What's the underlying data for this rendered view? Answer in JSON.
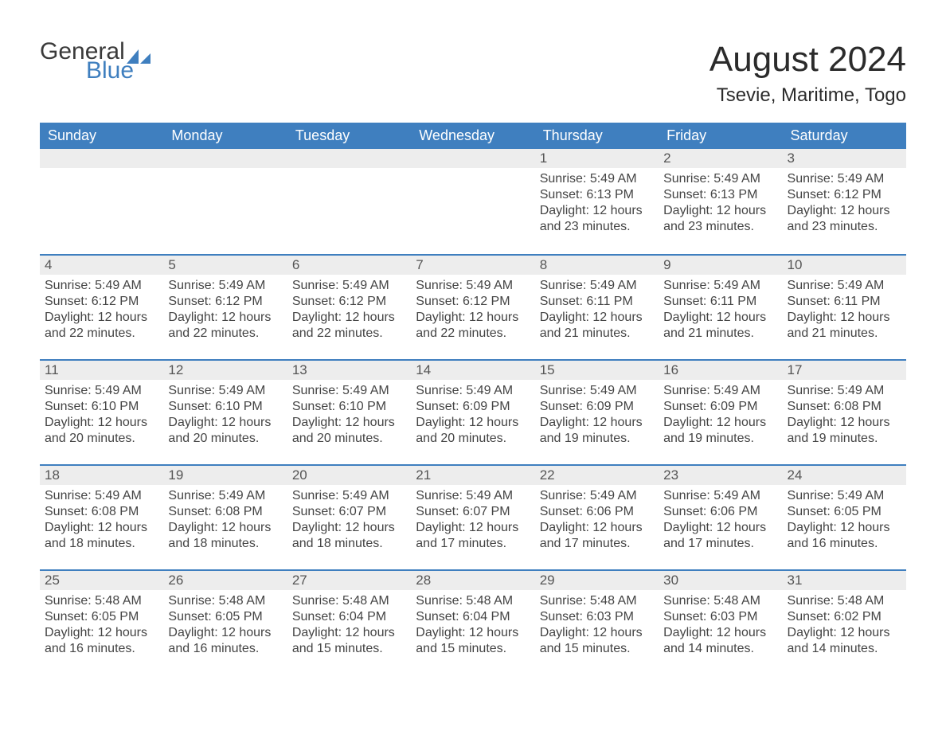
{
  "logo": {
    "text1": "General",
    "text2": "Blue",
    "sail_color": "#3f7fbf"
  },
  "title": "August 2024",
  "location": "Tsevie, Maritime, Togo",
  "colors": {
    "header_bg": "#3f7fbf",
    "header_text": "#ffffff",
    "daynum_bg": "#ededed",
    "rule": "#3f7fbf",
    "body_text": "#444444"
  },
  "weekdays": [
    "Sunday",
    "Monday",
    "Tuesday",
    "Wednesday",
    "Thursday",
    "Friday",
    "Saturday"
  ],
  "labels": {
    "sunrise": "Sunrise:",
    "sunset": "Sunset:",
    "daylight": "Daylight:"
  },
  "weeks": [
    [
      null,
      null,
      null,
      null,
      {
        "n": "1",
        "sunrise": "5:49 AM",
        "sunset": "6:13 PM",
        "daylight": "12 hours and 23 minutes."
      },
      {
        "n": "2",
        "sunrise": "5:49 AM",
        "sunset": "6:13 PM",
        "daylight": "12 hours and 23 minutes."
      },
      {
        "n": "3",
        "sunrise": "5:49 AM",
        "sunset": "6:12 PM",
        "daylight": "12 hours and 23 minutes."
      }
    ],
    [
      {
        "n": "4",
        "sunrise": "5:49 AM",
        "sunset": "6:12 PM",
        "daylight": "12 hours and 22 minutes."
      },
      {
        "n": "5",
        "sunrise": "5:49 AM",
        "sunset": "6:12 PM",
        "daylight": "12 hours and 22 minutes."
      },
      {
        "n": "6",
        "sunrise": "5:49 AM",
        "sunset": "6:12 PM",
        "daylight": "12 hours and 22 minutes."
      },
      {
        "n": "7",
        "sunrise": "5:49 AM",
        "sunset": "6:12 PM",
        "daylight": "12 hours and 22 minutes."
      },
      {
        "n": "8",
        "sunrise": "5:49 AM",
        "sunset": "6:11 PM",
        "daylight": "12 hours and 21 minutes."
      },
      {
        "n": "9",
        "sunrise": "5:49 AM",
        "sunset": "6:11 PM",
        "daylight": "12 hours and 21 minutes."
      },
      {
        "n": "10",
        "sunrise": "5:49 AM",
        "sunset": "6:11 PM",
        "daylight": "12 hours and 21 minutes."
      }
    ],
    [
      {
        "n": "11",
        "sunrise": "5:49 AM",
        "sunset": "6:10 PM",
        "daylight": "12 hours and 20 minutes."
      },
      {
        "n": "12",
        "sunrise": "5:49 AM",
        "sunset": "6:10 PM",
        "daylight": "12 hours and 20 minutes."
      },
      {
        "n": "13",
        "sunrise": "5:49 AM",
        "sunset": "6:10 PM",
        "daylight": "12 hours and 20 minutes."
      },
      {
        "n": "14",
        "sunrise": "5:49 AM",
        "sunset": "6:09 PM",
        "daylight": "12 hours and 20 minutes."
      },
      {
        "n": "15",
        "sunrise": "5:49 AM",
        "sunset": "6:09 PM",
        "daylight": "12 hours and 19 minutes."
      },
      {
        "n": "16",
        "sunrise": "5:49 AM",
        "sunset": "6:09 PM",
        "daylight": "12 hours and 19 minutes."
      },
      {
        "n": "17",
        "sunrise": "5:49 AM",
        "sunset": "6:08 PM",
        "daylight": "12 hours and 19 minutes."
      }
    ],
    [
      {
        "n": "18",
        "sunrise": "5:49 AM",
        "sunset": "6:08 PM",
        "daylight": "12 hours and 18 minutes."
      },
      {
        "n": "19",
        "sunrise": "5:49 AM",
        "sunset": "6:08 PM",
        "daylight": "12 hours and 18 minutes."
      },
      {
        "n": "20",
        "sunrise": "5:49 AM",
        "sunset": "6:07 PM",
        "daylight": "12 hours and 18 minutes."
      },
      {
        "n": "21",
        "sunrise": "5:49 AM",
        "sunset": "6:07 PM",
        "daylight": "12 hours and 17 minutes."
      },
      {
        "n": "22",
        "sunrise": "5:49 AM",
        "sunset": "6:06 PM",
        "daylight": "12 hours and 17 minutes."
      },
      {
        "n": "23",
        "sunrise": "5:49 AM",
        "sunset": "6:06 PM",
        "daylight": "12 hours and 17 minutes."
      },
      {
        "n": "24",
        "sunrise": "5:49 AM",
        "sunset": "6:05 PM",
        "daylight": "12 hours and 16 minutes."
      }
    ],
    [
      {
        "n": "25",
        "sunrise": "5:48 AM",
        "sunset": "6:05 PM",
        "daylight": "12 hours and 16 minutes."
      },
      {
        "n": "26",
        "sunrise": "5:48 AM",
        "sunset": "6:05 PM",
        "daylight": "12 hours and 16 minutes."
      },
      {
        "n": "27",
        "sunrise": "5:48 AM",
        "sunset": "6:04 PM",
        "daylight": "12 hours and 15 minutes."
      },
      {
        "n": "28",
        "sunrise": "5:48 AM",
        "sunset": "6:04 PM",
        "daylight": "12 hours and 15 minutes."
      },
      {
        "n": "29",
        "sunrise": "5:48 AM",
        "sunset": "6:03 PM",
        "daylight": "12 hours and 15 minutes."
      },
      {
        "n": "30",
        "sunrise": "5:48 AM",
        "sunset": "6:03 PM",
        "daylight": "12 hours and 14 minutes."
      },
      {
        "n": "31",
        "sunrise": "5:48 AM",
        "sunset": "6:02 PM",
        "daylight": "12 hours and 14 minutes."
      }
    ]
  ]
}
